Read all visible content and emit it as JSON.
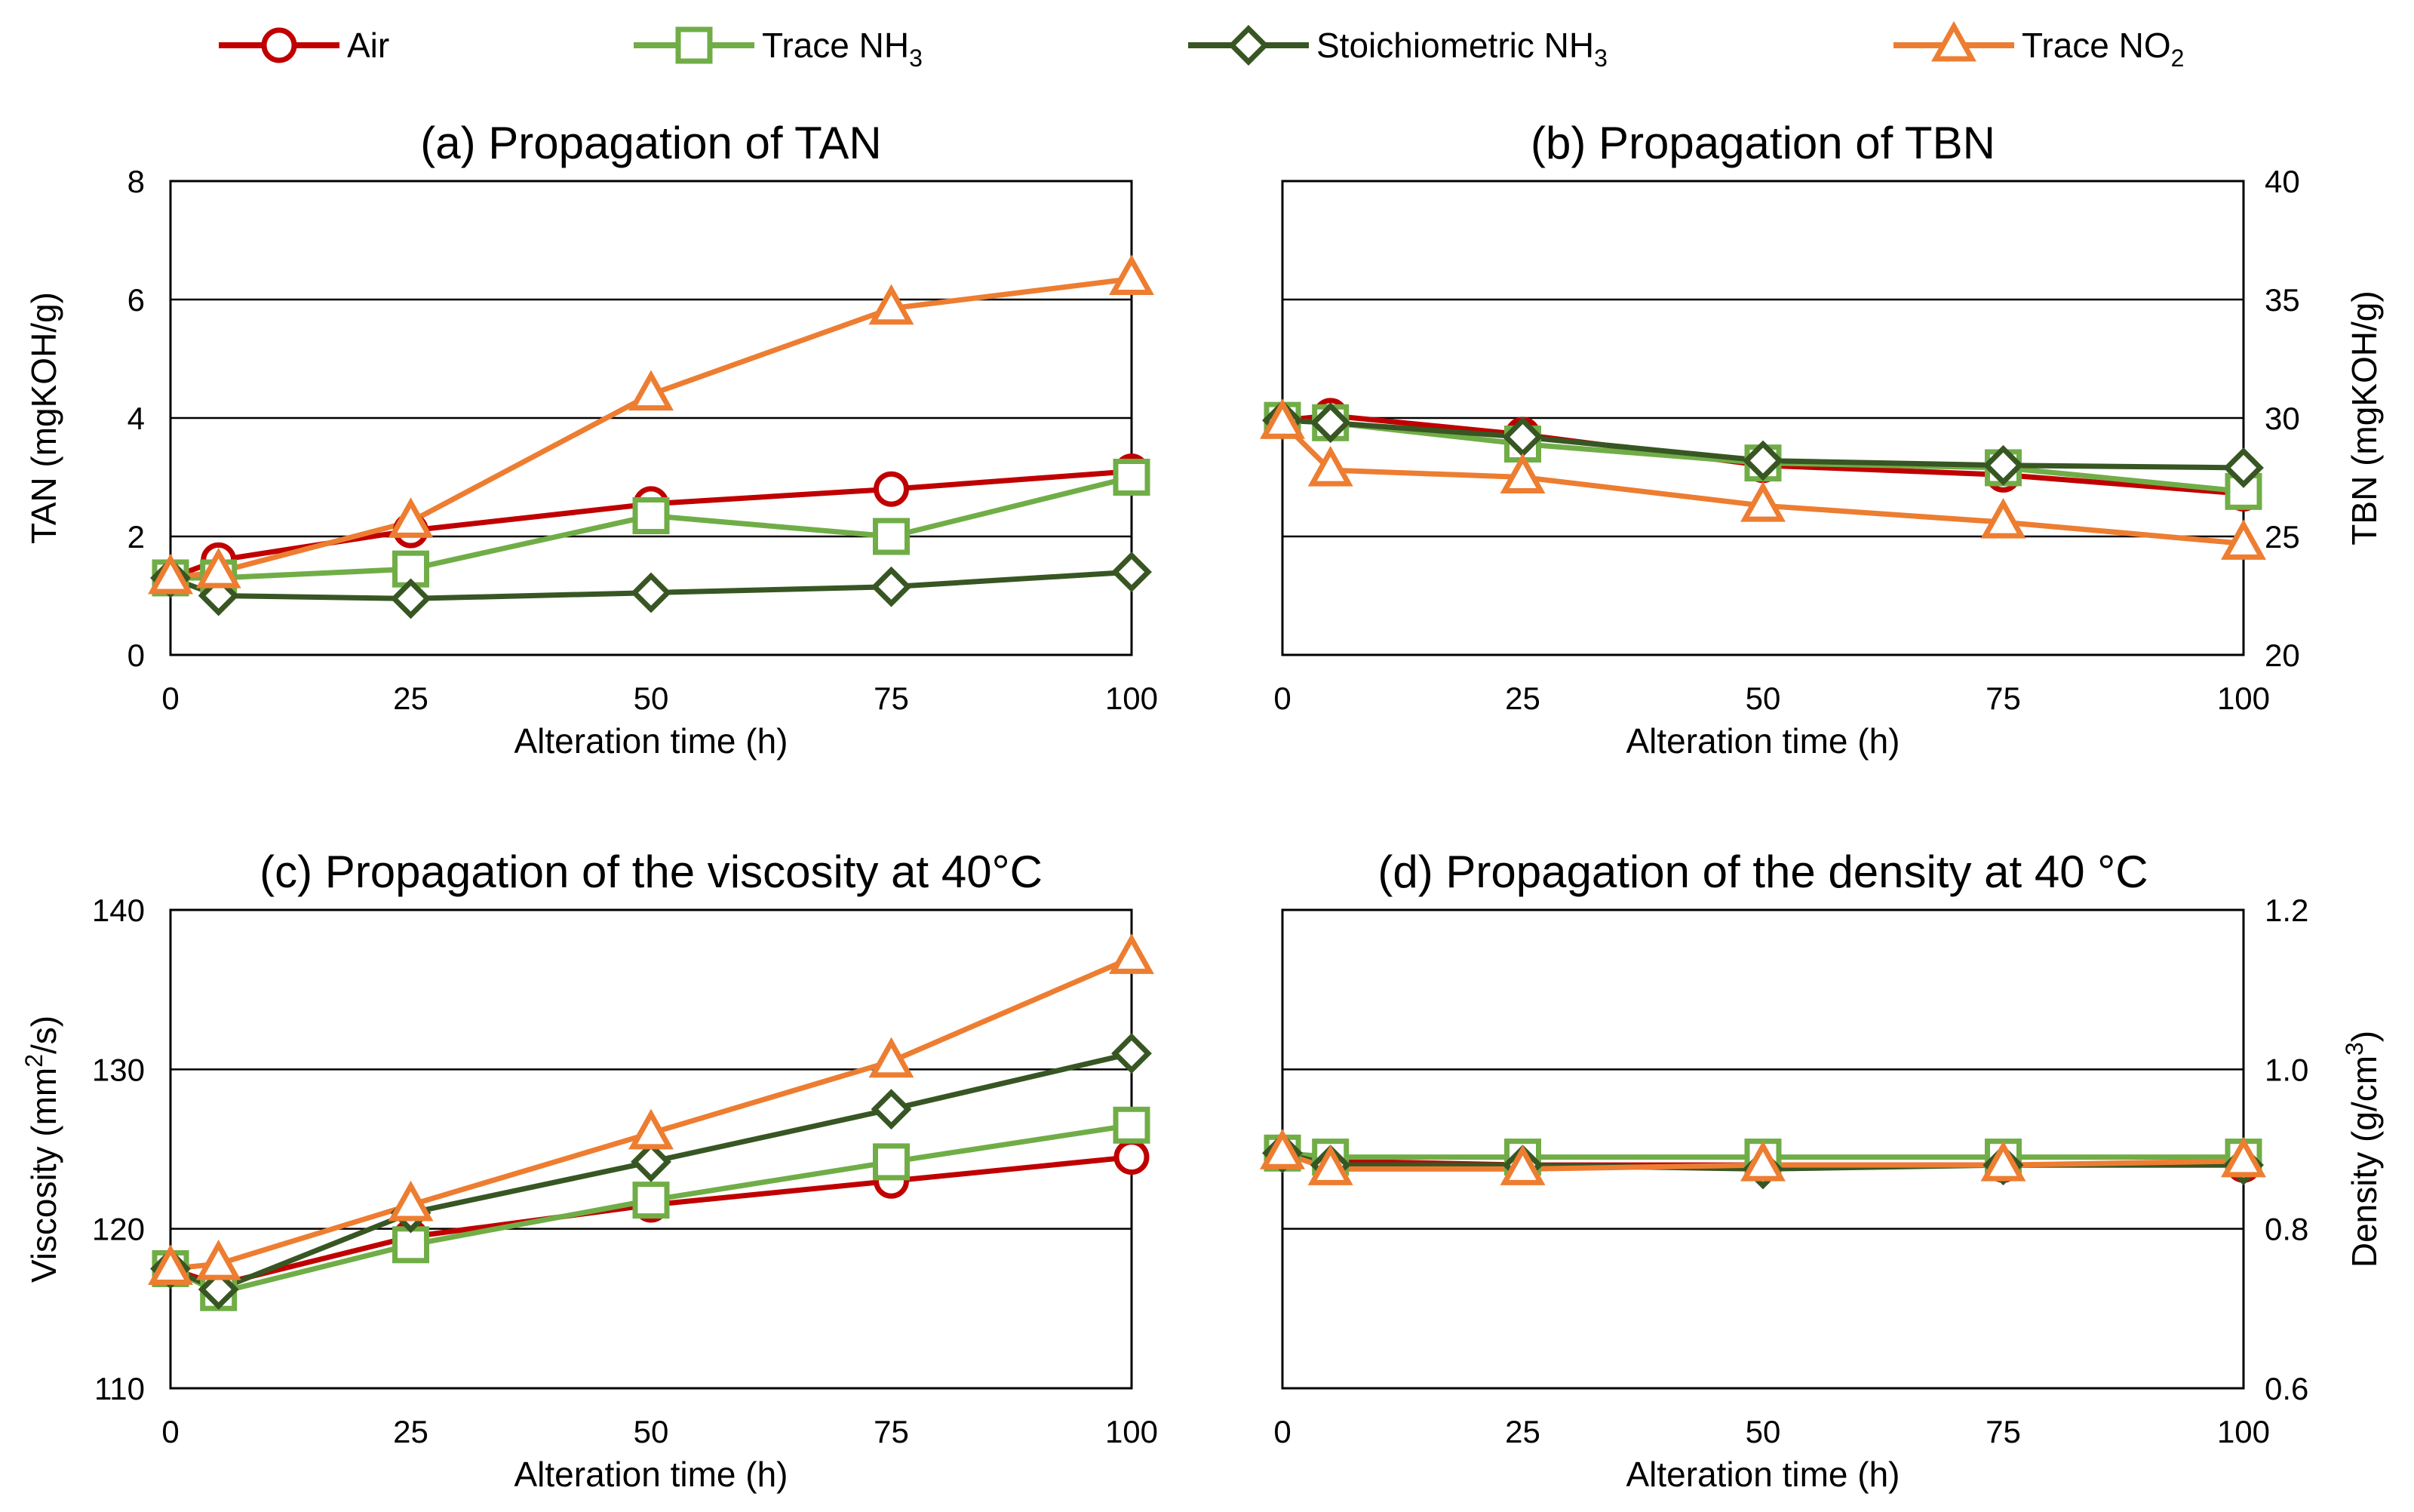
{
  "series_styles": [
    {
      "key": "air",
      "name": "Air",
      "sub": "",
      "color": "#C00000",
      "marker": "circle"
    },
    {
      "key": "trace_nh3",
      "name": "Trace NH",
      "sub": "3",
      "color": "#70AD47",
      "marker": "square"
    },
    {
      "key": "stoich_nh3",
      "name": "Stoichiometric NH",
      "sub": "3",
      "color": "#375623",
      "marker": "diamond"
    },
    {
      "key": "trace_no2",
      "name": "Trace NO",
      "sub": "2",
      "color": "#ED7D31",
      "marker": "triangle"
    }
  ],
  "chart_data": [
    {
      "type": "line",
      "title": "(a) Propagation of TAN",
      "xlabel": "Alteration time (h)",
      "ylabel": "TAN  (mgKOH/g)",
      "ylabel_sup": "",
      "ylabel_after": "",
      "y_axis_side": "left",
      "xlim": [
        0,
        100
      ],
      "ylim": [
        0,
        8
      ],
      "xticks": [
        0,
        25,
        50,
        75,
        100
      ],
      "yticks": [
        0,
        2,
        4,
        6,
        8
      ],
      "ytick_labels": [
        "0",
        "2",
        "4",
        "6",
        "8"
      ],
      "grid": true,
      "x": [
        0,
        5,
        25,
        50,
        75,
        100
      ],
      "series": [
        {
          "name": "Air",
          "values": [
            1.3,
            1.6,
            2.1,
            2.55,
            2.8,
            3.1
          ]
        },
        {
          "name": "Trace NH3",
          "values": [
            1.3,
            1.3,
            1.45,
            2.35,
            2.0,
            3.0
          ]
        },
        {
          "name": "Stoichiometric NH3",
          "values": [
            1.3,
            1.0,
            0.95,
            1.05,
            1.15,
            1.4
          ]
        },
        {
          "name": "Trace NO2",
          "values": [
            1.3,
            1.4,
            2.25,
            4.4,
            5.85,
            6.35
          ]
        }
      ]
    },
    {
      "type": "line",
      "title": "(b) Propagation of TBN",
      "xlabel": "Alteration time (h)",
      "ylabel": "TBN  (mgKOH/g)",
      "ylabel_sup": "",
      "ylabel_after": "",
      "y_axis_side": "right",
      "xlim": [
        0,
        100
      ],
      "ylim": [
        20,
        40
      ],
      "xticks": [
        0,
        25,
        50,
        75,
        100
      ],
      "yticks": [
        20,
        25,
        30,
        35,
        40
      ],
      "ytick_labels": [
        "20",
        "25",
        "30",
        "35",
        "40"
      ],
      "grid": true,
      "x": [
        0,
        5,
        25,
        50,
        75,
        100
      ],
      "series": [
        {
          "name": "Air",
          "values": [
            29.9,
            30.1,
            29.3,
            28.0,
            27.6,
            26.8
          ]
        },
        {
          "name": "Trace NH3",
          "values": [
            29.9,
            29.8,
            28.9,
            28.1,
            27.9,
            26.9
          ]
        },
        {
          "name": "Stoichiometric NH3",
          "values": [
            29.9,
            29.8,
            29.2,
            28.2,
            28.0,
            27.9
          ]
        },
        {
          "name": "Trace NO2",
          "values": [
            29.8,
            27.8,
            27.5,
            26.3,
            25.6,
            24.7
          ]
        }
      ]
    },
    {
      "type": "line",
      "title": "(c) Propagation of the viscosity at 40°C",
      "xlabel": "Alteration time (h)",
      "ylabel": "Viscosity (mm",
      "ylabel_sup": "2",
      "ylabel_after": "/s)",
      "y_axis_side": "left",
      "xlim": [
        0,
        100
      ],
      "ylim": [
        110,
        140
      ],
      "xticks": [
        0,
        25,
        50,
        75,
        100
      ],
      "yticks": [
        110,
        120,
        130,
        140
      ],
      "ytick_labels": [
        "110",
        "120",
        "130",
        "140"
      ],
      "grid": true,
      "x": [
        0,
        5,
        25,
        50,
        75,
        100
      ],
      "series": [
        {
          "name": "Air",
          "values": [
            117.5,
            116.5,
            119.5,
            121.5,
            123.0,
            124.5
          ]
        },
        {
          "name": "Trace NH3",
          "values": [
            117.5,
            116.0,
            119.0,
            121.8,
            124.2,
            126.5
          ]
        },
        {
          "name": "Stoichiometric NH3",
          "values": [
            117.5,
            116.2,
            121.0,
            124.2,
            127.5,
            131.0
          ]
        },
        {
          "name": "Trace NO2",
          "values": [
            117.5,
            117.8,
            121.5,
            126.0,
            130.5,
            137.0
          ]
        }
      ]
    },
    {
      "type": "line",
      "title": "(d) Propagation of the density at 40 °C",
      "xlabel": "Alteration time (h)",
      "ylabel": "Density  (g/cm",
      "ylabel_sup": "3",
      "ylabel_after": ")",
      "y_axis_side": "right",
      "xlim": [
        0,
        100
      ],
      "ylim": [
        0.6,
        1.2
      ],
      "xticks": [
        0,
        25,
        50,
        75,
        100
      ],
      "yticks": [
        0.6,
        0.8,
        1.0,
        1.2
      ],
      "ytick_labels": [
        "0.6",
        "0.8",
        "1.0",
        "1.2"
      ],
      "grid": true,
      "x": [
        0,
        5,
        25,
        50,
        75,
        100
      ],
      "series": [
        {
          "name": "Air",
          "values": [
            0.895,
            0.885,
            0.88,
            0.88,
            0.88,
            0.88
          ]
        },
        {
          "name": "Trace NH3",
          "values": [
            0.895,
            0.89,
            0.89,
            0.89,
            0.89,
            0.89
          ]
        },
        {
          "name": "Stoichiometric NH3",
          "values": [
            0.895,
            0.88,
            0.88,
            0.875,
            0.88,
            0.88
          ]
        },
        {
          "name": "Trace NO2",
          "values": [
            0.895,
            0.875,
            0.875,
            0.88,
            0.88,
            0.885
          ]
        }
      ]
    }
  ]
}
